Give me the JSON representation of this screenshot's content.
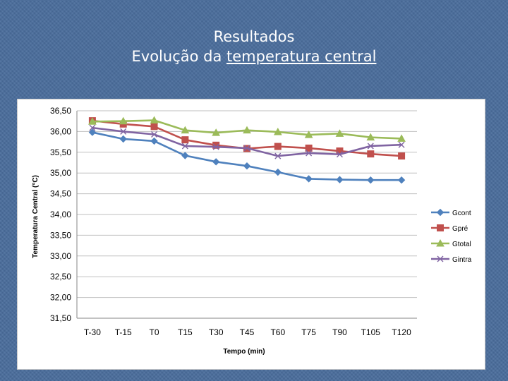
{
  "slide": {
    "title_line1": "Resultados",
    "title_prefix": "Evolução da ",
    "title_underlined": "temperatura central"
  },
  "chart_data": {
    "type": "line",
    "title": "",
    "xlabel": "Tempo (min)",
    "ylabel": "Temperatura Central (°C)",
    "ylim": [
      31.5,
      36.5
    ],
    "ytick_step": 0.5,
    "ytick_labels": [
      "31,50",
      "32,00",
      "32,50",
      "33,00",
      "33,50",
      "34,00",
      "34,50",
      "35,00",
      "35,50",
      "36,00",
      "36,50"
    ],
    "grid": true,
    "legend_position": "right",
    "categories": [
      "T-30",
      "T-15",
      "T0",
      "T15",
      "T30",
      "T45",
      "T60",
      "T75",
      "T90",
      "T105",
      "T120"
    ],
    "series": [
      {
        "name": "Gcont",
        "color": "#4f81bd",
        "marker": "diamond",
        "values": [
          35.98,
          35.82,
          35.77,
          35.42,
          35.27,
          35.17,
          35.02,
          34.86,
          34.84,
          34.83,
          34.83
        ]
      },
      {
        "name": "Gpré",
        "color": "#c0504d",
        "marker": "square",
        "values": [
          36.26,
          36.18,
          36.12,
          35.8,
          35.67,
          35.59,
          35.64,
          35.6,
          35.53,
          35.46,
          35.41
        ]
      },
      {
        "name": "Gtotal",
        "color": "#9bbb59",
        "marker": "triangle",
        "values": [
          36.24,
          36.25,
          36.27,
          36.03,
          35.97,
          36.03,
          35.99,
          35.92,
          35.95,
          35.86,
          35.83
        ]
      },
      {
        "name": "Gintra",
        "color": "#8064a2",
        "marker": "x",
        "values": [
          36.09,
          36.0,
          35.93,
          35.65,
          35.63,
          35.6,
          35.41,
          35.48,
          35.45,
          35.65,
          35.68
        ]
      }
    ]
  }
}
